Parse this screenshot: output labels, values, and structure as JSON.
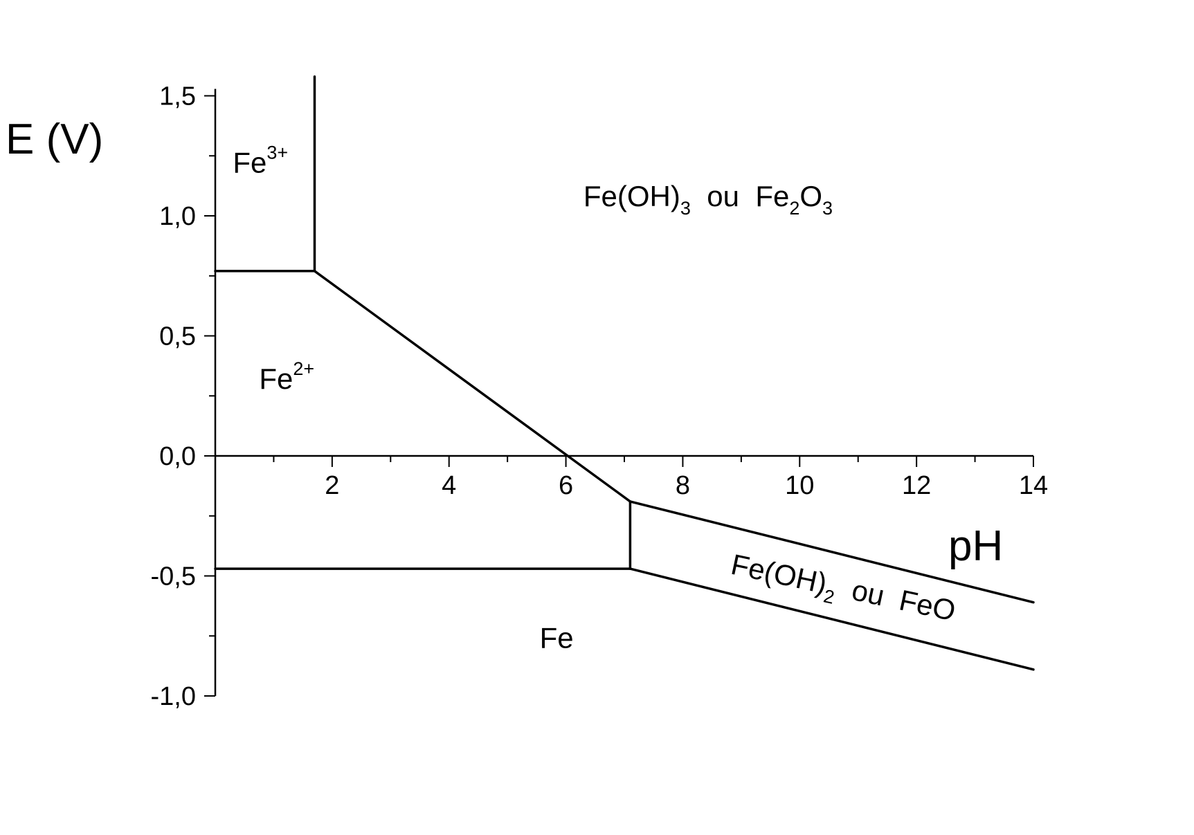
{
  "chart_data": {
    "type": "line",
    "title": "",
    "ylabel": "E (V)",
    "xlabel": "pH",
    "xlim": [
      0,
      14
    ],
    "ylim": [
      -1.0,
      1.6
    ],
    "x_ticks": [
      {
        "value": 2,
        "label": "2"
      },
      {
        "value": 4,
        "label": "4"
      },
      {
        "value": 6,
        "label": "6"
      },
      {
        "value": 8,
        "label": "8"
      },
      {
        "value": 10,
        "label": "10"
      },
      {
        "value": 12,
        "label": "12"
      },
      {
        "value": 14,
        "label": "14"
      }
    ],
    "x_minor_ticks": [
      1,
      3,
      5,
      7,
      9,
      11,
      13
    ],
    "y_ticks": [
      {
        "value": 1.5,
        "label": "1,5"
      },
      {
        "value": 1.0,
        "label": "1,0"
      },
      {
        "value": 0.5,
        "label": "0,5"
      },
      {
        "value": 0.0,
        "label": "0,0"
      },
      {
        "value": -0.5,
        "label": "-0,5"
      },
      {
        "value": -1.0,
        "label": "-1,0"
      }
    ],
    "y_minor_ticks": [
      1.25,
      0.75,
      0.25,
      -0.25,
      -0.75
    ],
    "grid": false,
    "legend": "none",
    "boundaries": [
      {
        "points": [
          [
            0,
            0.77
          ],
          [
            1.7,
            0.77
          ]
        ]
      },
      {
        "points": [
          [
            1.7,
            0.77
          ],
          [
            1.7,
            1.58
          ]
        ]
      },
      {
        "points": [
          [
            1.7,
            0.77
          ],
          [
            7.1,
            -0.19
          ]
        ]
      },
      {
        "points": [
          [
            7.1,
            -0.19
          ],
          [
            14,
            -0.61
          ]
        ]
      },
      {
        "points": [
          [
            7.1,
            -0.19
          ],
          [
            7.1,
            -0.47
          ]
        ]
      },
      {
        "points": [
          [
            0,
            -0.47
          ],
          [
            7.1,
            -0.47
          ]
        ]
      },
      {
        "points": [
          [
            7.1,
            -0.47
          ],
          [
            14,
            -0.89
          ]
        ]
      }
    ],
    "regions": [
      {
        "x": 0.3,
        "y": 1.18,
        "parts": [
          {
            "text": "Fe",
            "style": "normal"
          },
          {
            "text": "3+",
            "style": "sup"
          }
        ]
      },
      {
        "x": 6.3,
        "y": 1.04,
        "parts": [
          {
            "text": "Fe(OH)",
            "style": "normal"
          },
          {
            "text": "3",
            "style": "sub"
          },
          {
            "text": "  ou  Fe",
            "style": "normal"
          },
          {
            "text": "2",
            "style": "sub"
          },
          {
            "text": "O",
            "style": "normal"
          },
          {
            "text": "3",
            "style": "sub"
          }
        ]
      },
      {
        "x": 0.75,
        "y": 0.28,
        "parts": [
          {
            "text": "Fe",
            "style": "normal"
          },
          {
            "text": "2+",
            "style": "sup"
          }
        ]
      },
      {
        "x": 5.55,
        "y": -0.8,
        "parts": [
          {
            "text": "Fe",
            "style": "normal"
          }
        ]
      },
      {
        "x": 8.8,
        "y": -0.49,
        "rotate": 12,
        "parts": [
          {
            "text": "Fe(OH)",
            "style": "normal"
          },
          {
            "text": "2",
            "style": "sub"
          },
          {
            "text": "  ou  FeO",
            "style": "normal"
          }
        ]
      }
    ]
  }
}
